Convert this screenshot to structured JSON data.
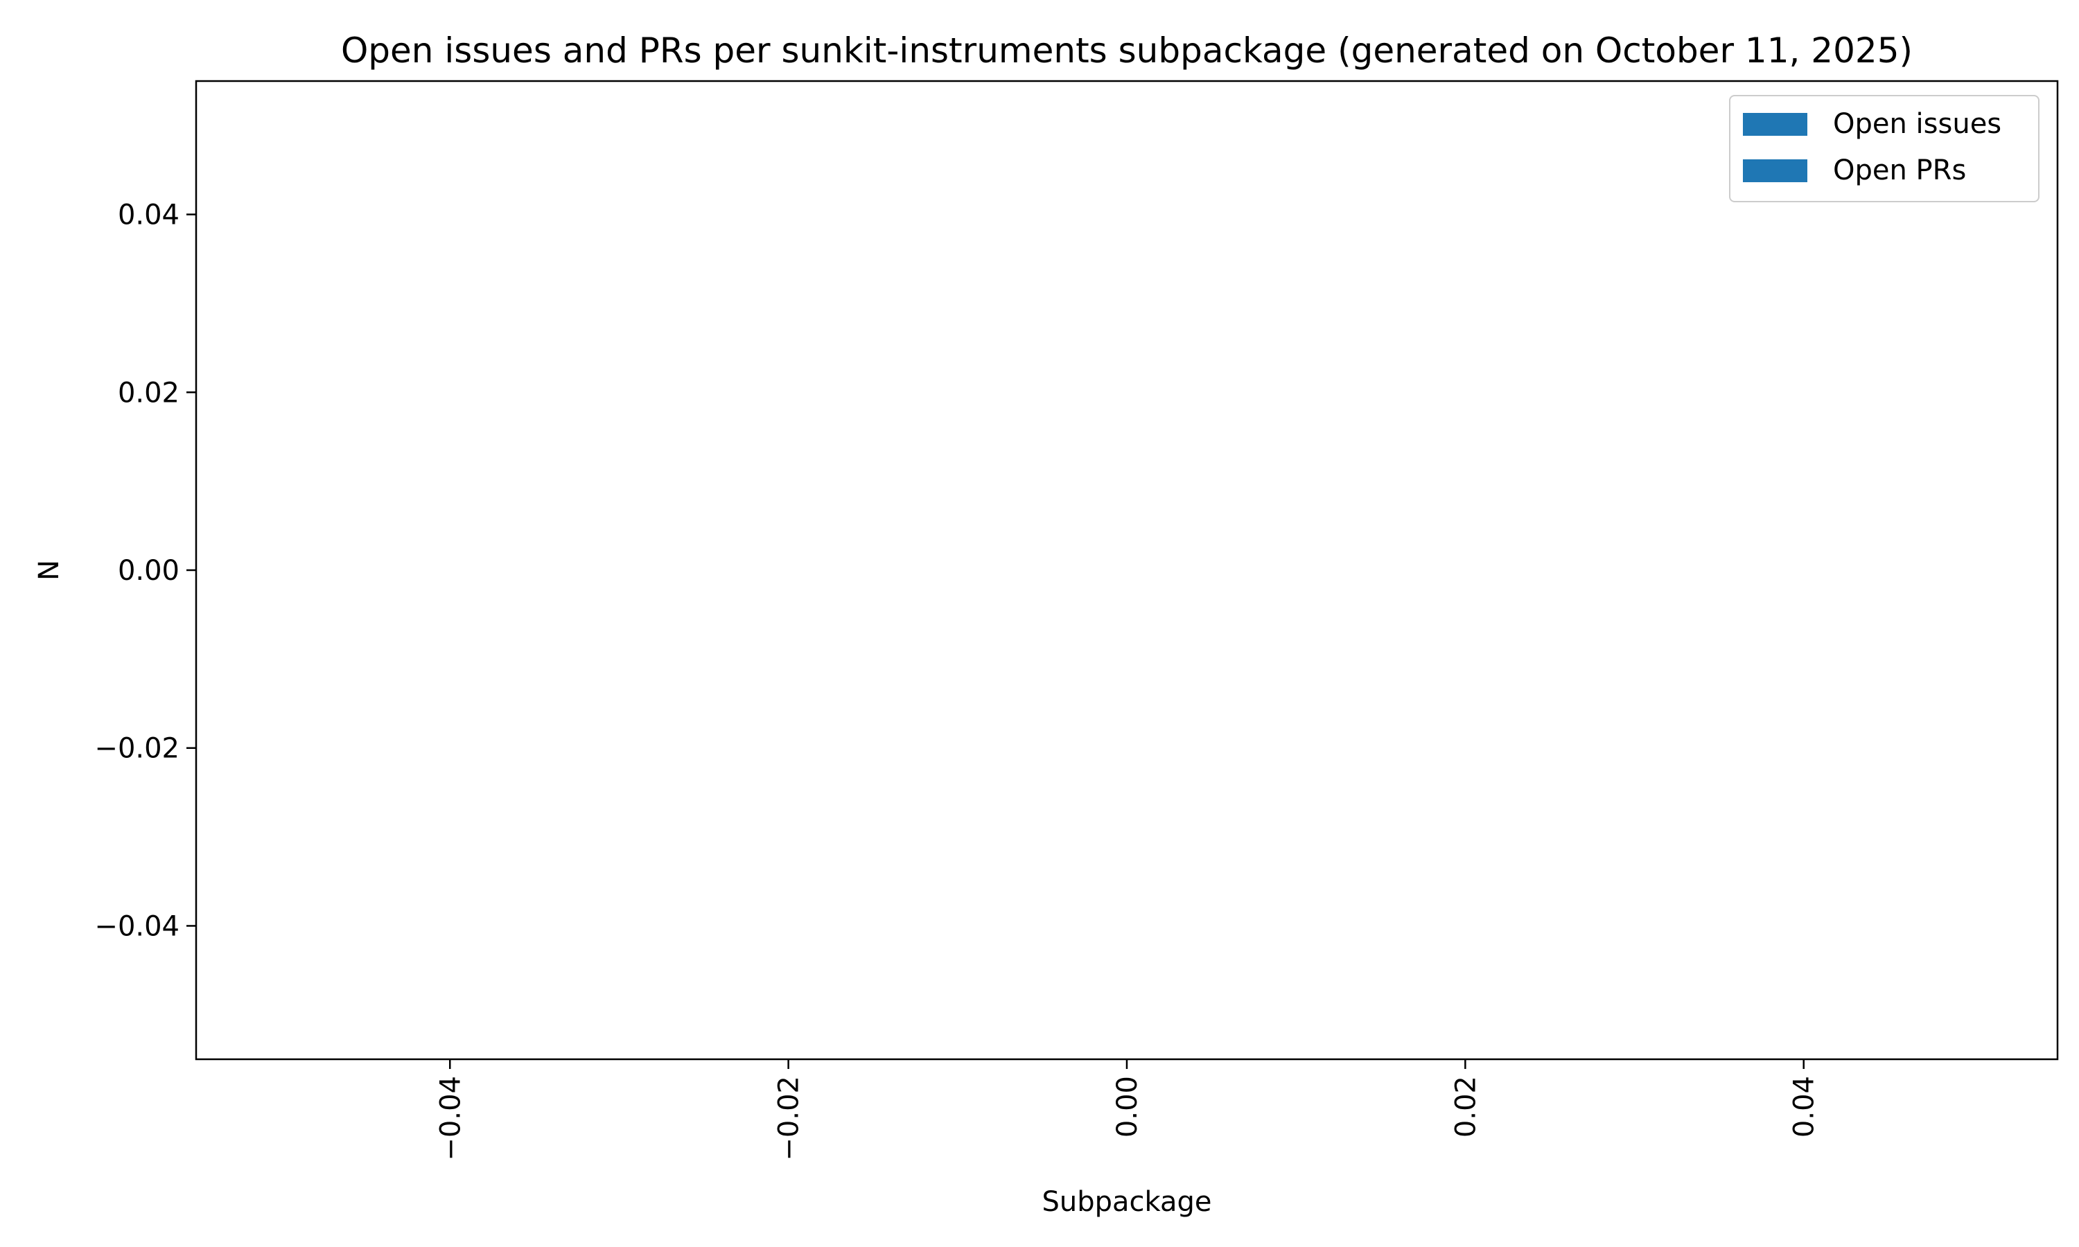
{
  "chart_data": {
    "type": "bar",
    "title": "Open issues and PRs per sunkit-instruments subpackage (generated on October 11, 2025)",
    "xlabel": "Subpackage",
    "ylabel": "N",
    "categories": [],
    "series": [
      {
        "name": "Open issues",
        "values": [],
        "color": "#1f77b4"
      },
      {
        "name": "Open PRs",
        "values": [],
        "color": "#1f77b4"
      }
    ],
    "xlim": [
      -0.055,
      0.055
    ],
    "ylim": [
      -0.055,
      0.055
    ],
    "xticks": [
      {
        "value": -0.04,
        "label": "−0.04"
      },
      {
        "value": -0.02,
        "label": "−0.02"
      },
      {
        "value": 0.0,
        "label": "0.00"
      },
      {
        "value": 0.02,
        "label": "0.02"
      },
      {
        "value": 0.04,
        "label": "0.04"
      }
    ],
    "yticks": [
      {
        "value": 0.04,
        "label": "0.04"
      },
      {
        "value": 0.02,
        "label": "0.02"
      },
      {
        "value": 0.0,
        "label": "0.00"
      },
      {
        "value": -0.02,
        "label": "−0.02"
      },
      {
        "value": -0.04,
        "label": "−0.04"
      }
    ],
    "x_tick_rotation": "vertical",
    "grid": false,
    "legend_position": "top-right"
  }
}
